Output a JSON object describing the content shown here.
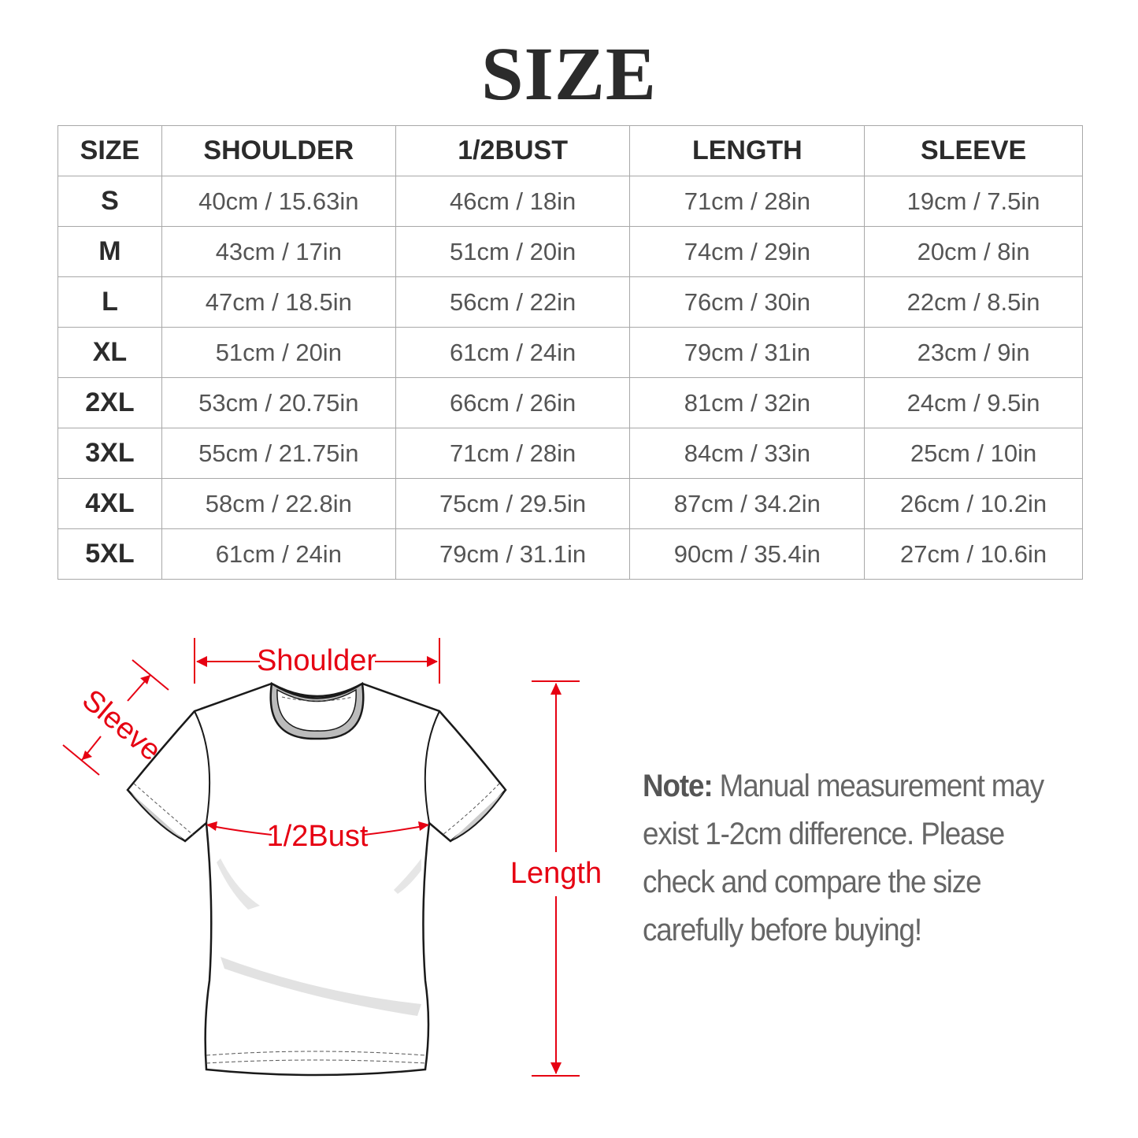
{
  "title": "SIZE",
  "table": {
    "headers": [
      "SIZE",
      "SHOULDER",
      "1/2BUST",
      "LENGTH",
      "SLEEVE"
    ],
    "rows": [
      [
        "S",
        "40cm / 15.63in",
        "46cm / 18in",
        "71cm / 28in",
        "19cm / 7.5in"
      ],
      [
        "M",
        "43cm / 17in",
        "51cm / 20in",
        "74cm / 29in",
        "20cm / 8in"
      ],
      [
        "L",
        "47cm / 18.5in",
        "56cm / 22in",
        "76cm / 30in",
        "22cm / 8.5in"
      ],
      [
        "XL",
        "51cm / 20in",
        "61cm / 24in",
        "79cm / 31in",
        "23cm / 9in"
      ],
      [
        "2XL",
        "53cm / 20.75in",
        "66cm / 26in",
        "81cm / 32in",
        "24cm / 9.5in"
      ],
      [
        "3XL",
        "55cm / 21.75in",
        "71cm / 28in",
        "84cm / 33in",
        "25cm / 10in"
      ],
      [
        "4XL",
        "58cm / 22.8in",
        "75cm / 29.5in",
        "87cm / 34.2in",
        "26cm / 10.2in"
      ],
      [
        "5XL",
        "61cm / 24in",
        "79cm / 31.1in",
        "90cm / 35.4in",
        "27cm / 10.6in"
      ]
    ]
  },
  "diagram": {
    "shoulder": "Shoulder",
    "sleeve": "Sleeve",
    "bust": "1/2Bust",
    "length": "Length",
    "accent_color": "#e60012"
  },
  "note": {
    "label": "Note:",
    "text": "Manual measurement may exist 1-2cm difference. Please check and compare the size carefully before buying!"
  }
}
